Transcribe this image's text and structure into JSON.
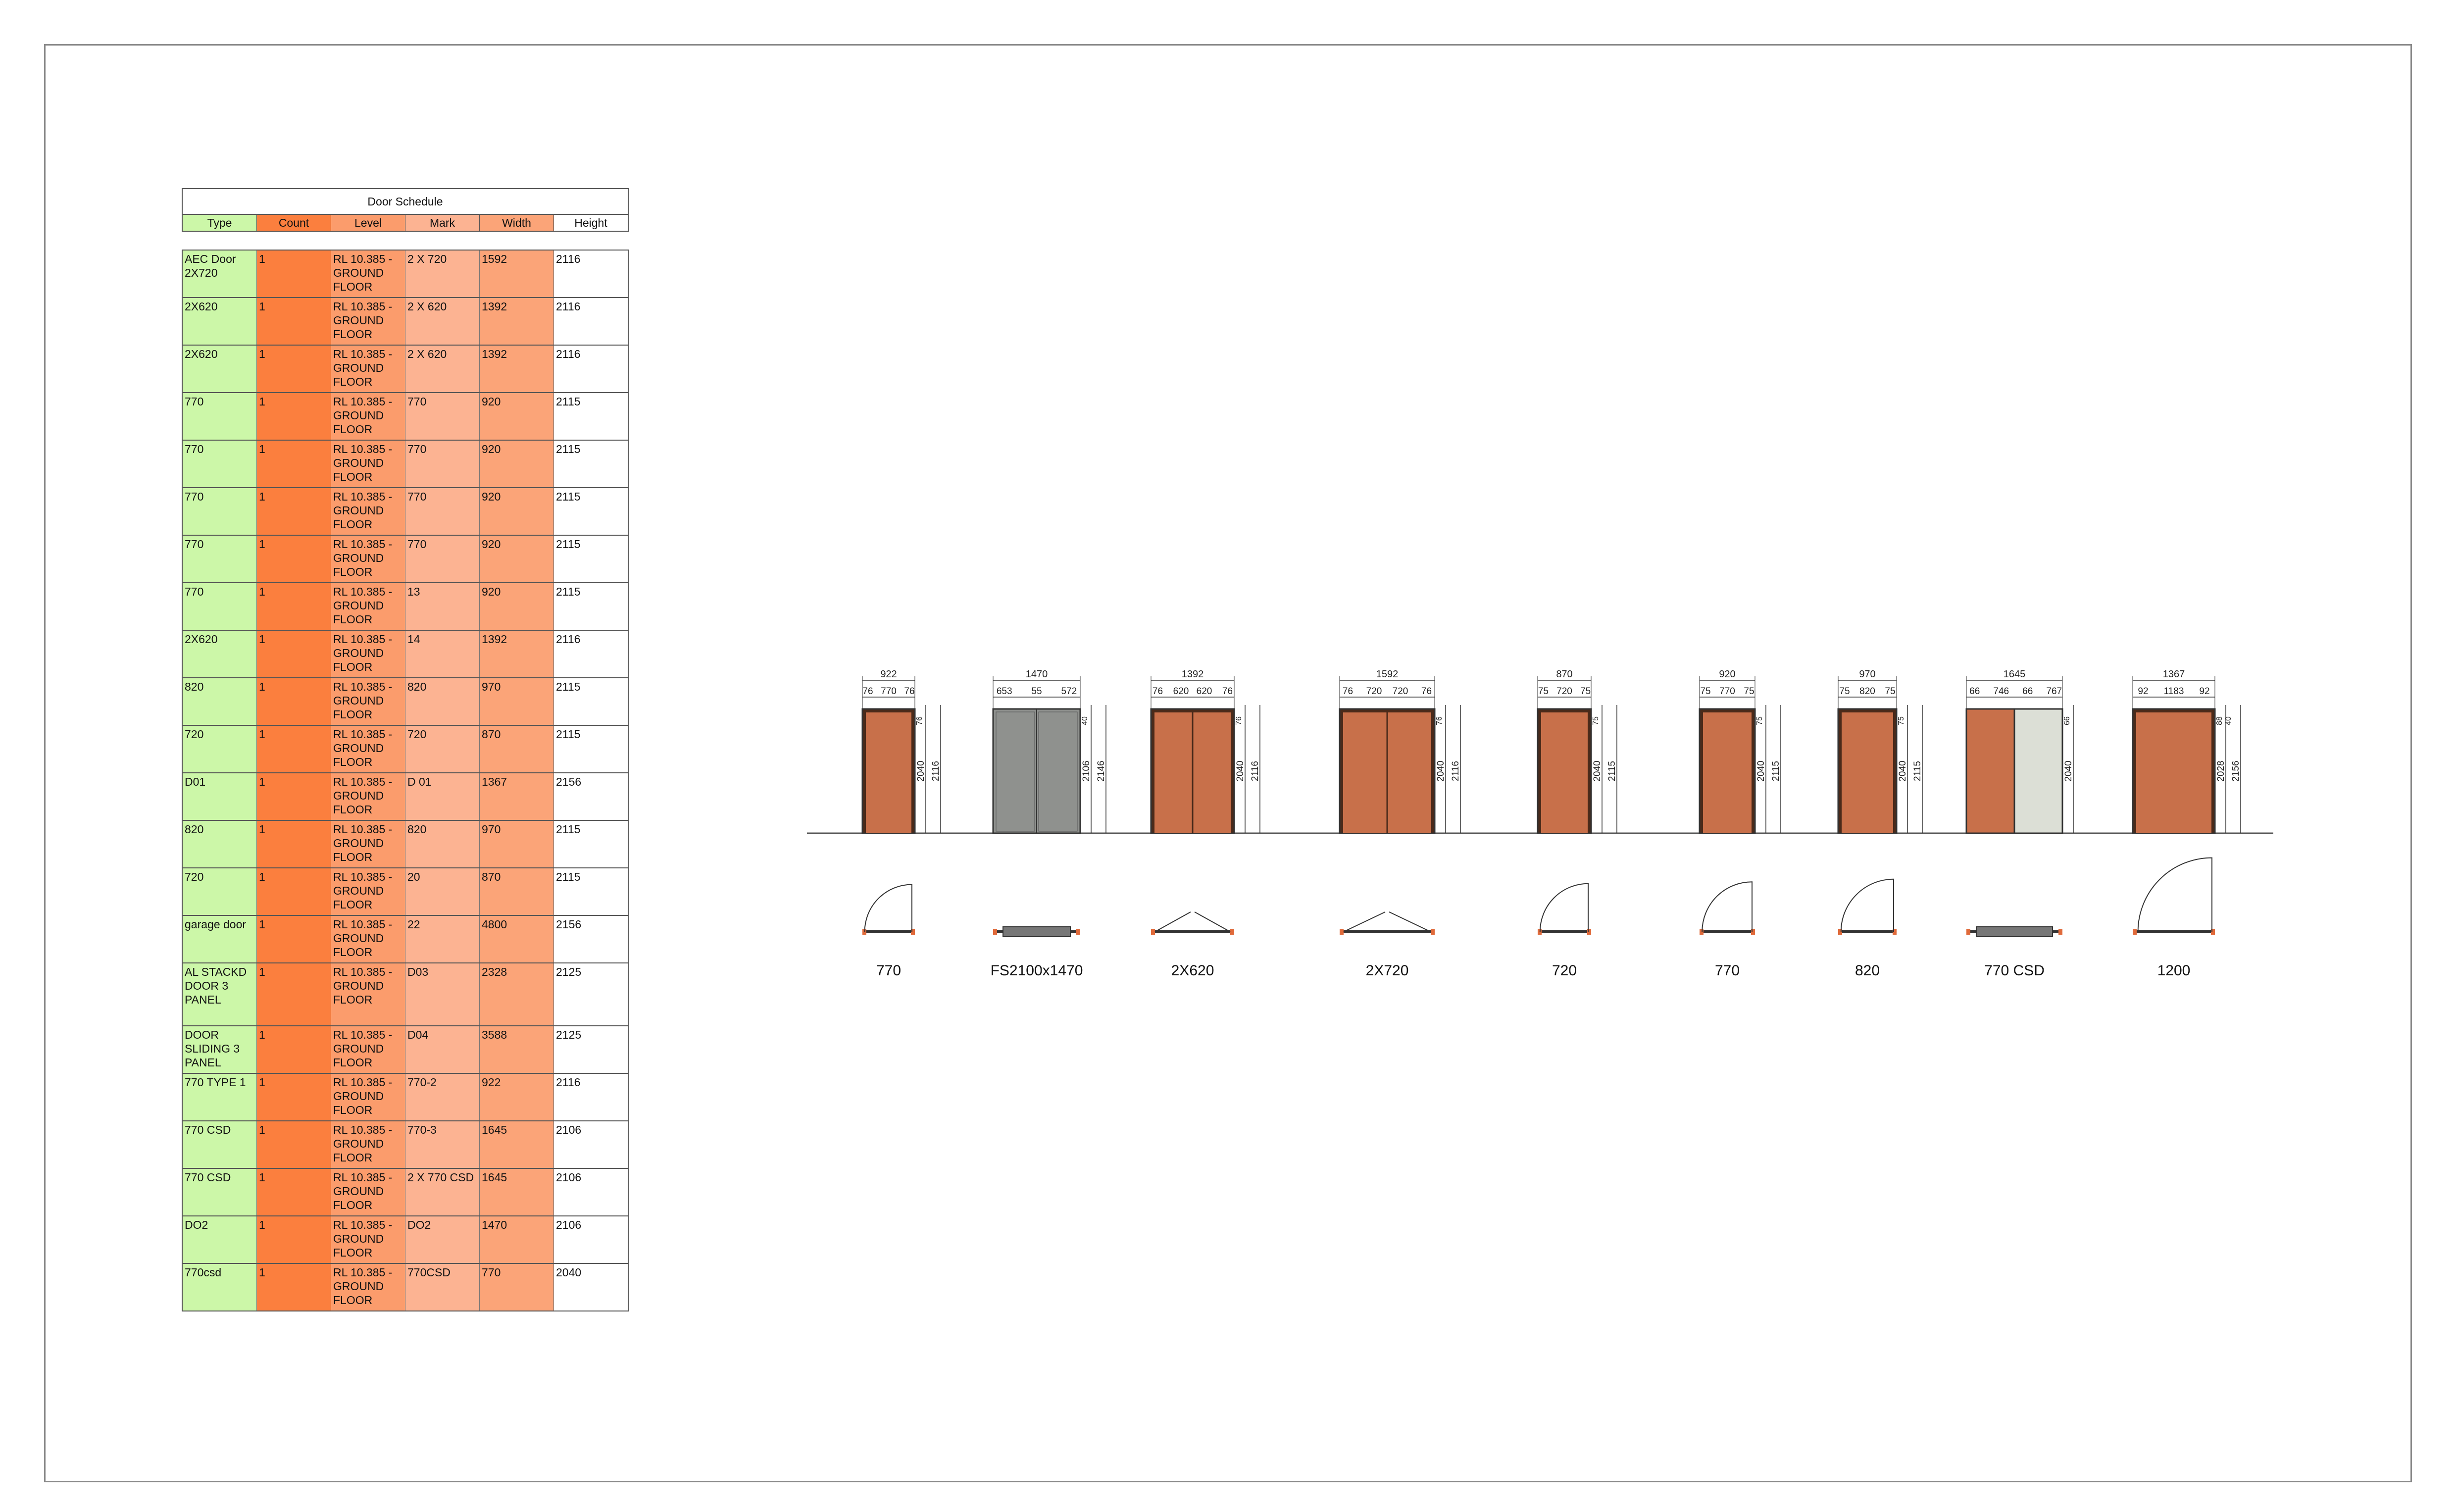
{
  "schedule": {
    "title": "Door Schedule",
    "headers": [
      "Type",
      "Count",
      "Level",
      "Mark",
      "Width",
      "Height"
    ],
    "rows": [
      [
        "AEC Door 2X720",
        "1",
        "RL 10.385 - GROUND FLOOR",
        "2 X 720",
        "1592",
        "2116"
      ],
      [
        "2X620",
        "1",
        "RL 10.385 - GROUND FLOOR",
        "2 X 620",
        "1392",
        "2116"
      ],
      [
        "2X620",
        "1",
        "RL 10.385 - GROUND FLOOR",
        "2 X 620",
        "1392",
        "2116"
      ],
      [
        "770",
        "1",
        "RL 10.385 - GROUND FLOOR",
        "770",
        "920",
        "2115"
      ],
      [
        "770",
        "1",
        "RL 10.385 - GROUND FLOOR",
        "770",
        "920",
        "2115"
      ],
      [
        "770",
        "1",
        "RL 10.385 - GROUND FLOOR",
        "770",
        "920",
        "2115"
      ],
      [
        "770",
        "1",
        "RL 10.385 - GROUND FLOOR",
        "770",
        "920",
        "2115"
      ],
      [
        "770",
        "1",
        "RL 10.385 - GROUND FLOOR",
        "13",
        "920",
        "2115"
      ],
      [
        "2X620",
        "1",
        "RL 10.385 - GROUND FLOOR",
        "14",
        "1392",
        "2116"
      ],
      [
        "820",
        "1",
        "RL 10.385 - GROUND FLOOR",
        "820",
        "970",
        "2115"
      ],
      [
        "720",
        "1",
        "RL 10.385 - GROUND FLOOR",
        "720",
        "870",
        "2115"
      ],
      [
        "D01",
        "1",
        "RL 10.385 - GROUND FLOOR",
        "D 01",
        "1367",
        "2156"
      ],
      [
        "820",
        "1",
        "RL 10.385 - GROUND FLOOR",
        "820",
        "970",
        "2115"
      ],
      [
        "720",
        "1",
        "RL 10.385 - GROUND FLOOR",
        "20",
        "870",
        "2115"
      ],
      [
        "garage door",
        "1",
        "RL 10.385 - GROUND FLOOR",
        "22",
        "4800",
        "2156"
      ],
      [
        "AL STACKD DOOR 3 PANEL",
        "1",
        "RL 10.385 - GROUND FLOOR",
        "D03",
        "2328",
        "2125"
      ],
      [
        "DOOR SLIDING 3 PANEL",
        "1",
        "RL 10.385 - GROUND FLOOR",
        "D04",
        "3588",
        "2125"
      ],
      [
        "770 TYPE 1",
        "1",
        "RL 10.385 - GROUND FLOOR",
        "770-2",
        "922",
        "2116"
      ],
      [
        "770 CSD",
        "1",
        "RL 10.385 - GROUND FLOOR",
        "770-3",
        "1645",
        "2106"
      ],
      [
        "770 CSD",
        "1",
        "RL 10.385 - GROUND FLOOR",
        "2 X 770 CSD",
        "1645",
        "2106"
      ],
      [
        "DO2",
        "1",
        "RL 10.385 - GROUND FLOOR",
        "DO2",
        "1470",
        "2106"
      ],
      [
        "770csd",
        "1",
        "RL 10.385 - GROUND FLOOR",
        "770CSD",
        "770",
        "2040"
      ]
    ]
  },
  "colors": {
    "type_col": "#ccf7a8",
    "count_col": "#fb7f3e",
    "level_col": "#fb9c6c",
    "mark_col": "#fcb392",
    "width_col": "#fba478",
    "door_timber": "#c8704a",
    "door_grey": "#8f918e",
    "door_glass": "#dcdfd6"
  },
  "doors": [
    {
      "label": "770",
      "kind": "single",
      "overall": "922",
      "parts": [
        "76",
        "770",
        "76"
      ],
      "heights": [
        "2040",
        "2116"
      ],
      "side": [
        "76"
      ]
    },
    {
      "label": "FS2100x1470",
      "kind": "grey",
      "overall": "1470",
      "parts": [
        "653",
        "55",
        "572"
      ],
      "outer": [
        "55",
        "40",
        "55",
        "40"
      ],
      "heights": [
        "2106",
        "2146"
      ],
      "side": [
        "40"
      ]
    },
    {
      "label": "2X620",
      "kind": "double",
      "overall": "1392",
      "parts": [
        "76",
        "620",
        "620",
        "76"
      ],
      "heights": [
        "2040",
        "2116"
      ],
      "side": [
        "76"
      ]
    },
    {
      "label": "2X720",
      "kind": "double",
      "overall": "1592",
      "parts": [
        "76",
        "720",
        "720",
        "76"
      ],
      "heights": [
        "2040",
        "2116"
      ],
      "side": [
        "76"
      ]
    },
    {
      "label": "720",
      "kind": "single",
      "overall": "870",
      "parts": [
        "75",
        "720",
        "75"
      ],
      "heights": [
        "2040",
        "2115"
      ],
      "side": [
        "75"
      ]
    },
    {
      "label": "770",
      "kind": "single",
      "overall": "920",
      "parts": [
        "75",
        "770",
        "75"
      ],
      "heights": [
        "2040",
        "2115"
      ],
      "side": [
        "75"
      ]
    },
    {
      "label": "820",
      "kind": "single",
      "overall": "970",
      "parts": [
        "75",
        "820",
        "75"
      ],
      "heights": [
        "2040",
        "2115"
      ],
      "side": [
        "75"
      ]
    },
    {
      "label": "770 CSD",
      "kind": "csd",
      "overall": "1645",
      "parts": [
        "66",
        "746",
        "66",
        "767"
      ],
      "heights": [
        "2040"
      ],
      "side": [
        "66"
      ]
    },
    {
      "label": "1200",
      "kind": "wide",
      "overall": "1367",
      "parts": [
        "92",
        "1183",
        "92"
      ],
      "heights": [
        "2028",
        "2156"
      ],
      "side": [
        "88",
        "40"
      ]
    }
  ]
}
